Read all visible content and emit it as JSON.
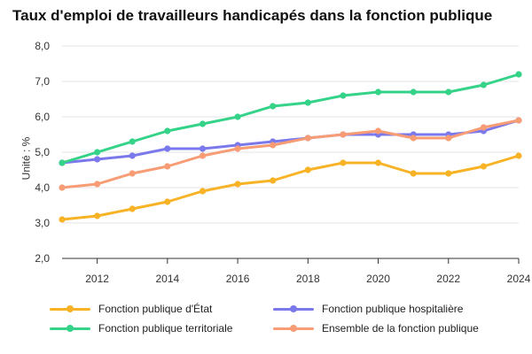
{
  "chart_data": {
    "type": "line",
    "title": "Taux d'emploi de travailleurs handicapés dans la fonction publique",
    "ylabel": "Unité : %",
    "xlabel": "",
    "ylim": [
      2.0,
      8.0
    ],
    "xlim": [
      2011,
      2024
    ],
    "yticks": [
      "2,0",
      "3,0",
      "4,0",
      "5,0",
      "6,0",
      "7,0",
      "8,0"
    ],
    "xticks": [
      "2012",
      "2014",
      "2016",
      "2018",
      "2020",
      "2022",
      "2024"
    ],
    "grid": "horizontal",
    "legend_position": "bottom",
    "x": [
      2011,
      2012,
      2013,
      2014,
      2015,
      2016,
      2017,
      2018,
      2019,
      2020,
      2021,
      2022,
      2023,
      2024
    ],
    "series": [
      {
        "name": "Fonction publique d'État",
        "color": "#f7b325",
        "values": [
          3.1,
          3.2,
          3.4,
          3.6,
          3.9,
          4.1,
          4.2,
          4.5,
          4.7,
          4.7,
          4.4,
          4.4,
          4.6,
          4.9
        ]
      },
      {
        "name": "Fonction publique hospitalière",
        "color": "#7b78ec",
        "values": [
          4.7,
          4.8,
          4.9,
          5.1,
          5.1,
          5.2,
          5.3,
          5.4,
          5.5,
          5.5,
          5.5,
          5.5,
          5.6,
          5.9
        ]
      },
      {
        "name": "Fonction publique territoriale",
        "color": "#34d388",
        "values": [
          4.7,
          5.0,
          5.3,
          5.6,
          5.8,
          6.0,
          6.3,
          6.4,
          6.6,
          6.7,
          6.7,
          6.7,
          6.9,
          7.2
        ]
      },
      {
        "name": "Ensemble de la fonction publique",
        "color": "#f79c74",
        "values": [
          4.0,
          4.1,
          4.4,
          4.6,
          4.9,
          5.1,
          5.2,
          5.4,
          5.5,
          5.6,
          5.4,
          5.4,
          5.7,
          5.9
        ]
      }
    ]
  }
}
